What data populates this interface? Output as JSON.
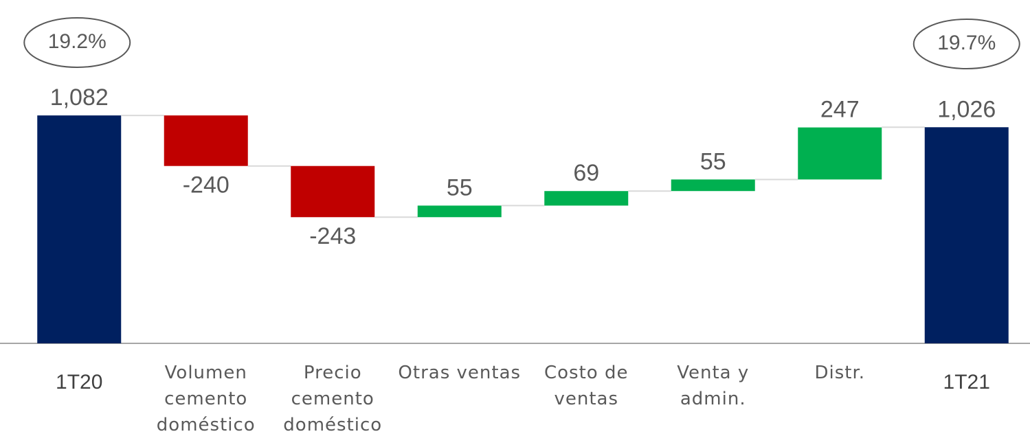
{
  "chart_data": {
    "type": "waterfall",
    "categories": [
      "1T20",
      "Volumen cemento doméstico",
      "Precio cemento doméstico",
      "Otras ventas",
      "Costo de ventas",
      "Venta y admin.",
      "Distr.",
      "1T21"
    ],
    "values": [
      1082,
      -240,
      -243,
      55,
      69,
      55,
      247,
      1026
    ],
    "value_labels": [
      "1,082",
      "-240",
      "-243",
      "55",
      "69",
      "55",
      "247",
      "1,026"
    ],
    "annotations": [
      "19.2%",
      "19.7%"
    ],
    "colors": {
      "total": "#002060",
      "decrease": "#c00000",
      "increase": "#00b050"
    },
    "ylim": [
      0,
      1630
    ]
  }
}
